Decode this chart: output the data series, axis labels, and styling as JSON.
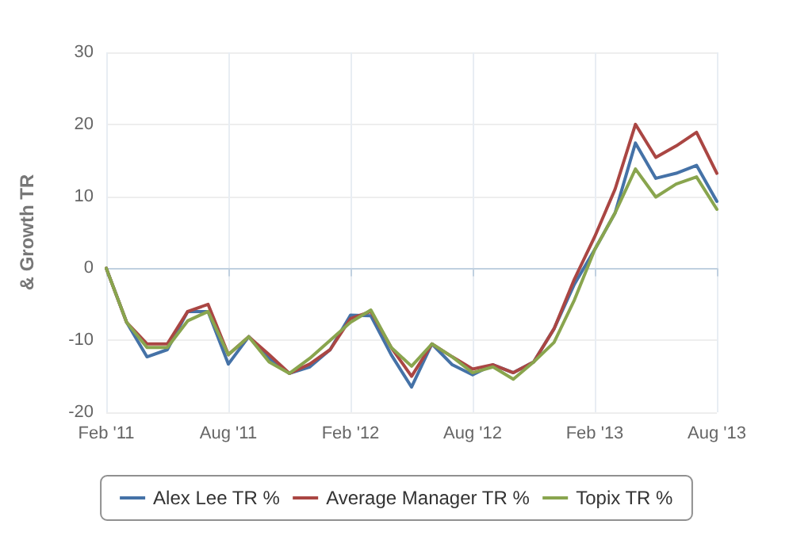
{
  "chart_data": {
    "type": "line",
    "ylabel": "& Growth TR",
    "categories": [
      "Feb '11",
      null,
      null,
      null,
      null,
      null,
      "Aug '11",
      null,
      null,
      null,
      null,
      null,
      "Feb '12",
      null,
      null,
      null,
      null,
      null,
      "Aug '12",
      null,
      null,
      null,
      null,
      null,
      "Feb '13",
      null,
      null,
      null,
      null,
      null,
      "Aug '13"
    ],
    "series": [
      {
        "name": "Alex Lee TR %",
        "color": "#4572a7",
        "values": [
          0,
          -7.5,
          -12.3,
          -11.3,
          -6,
          -6,
          -13.3,
          -9.5,
          -12.5,
          -14.6,
          -13.7,
          -11.3,
          -6.5,
          -6.6,
          -12,
          -16.5,
          -10.5,
          -13.4,
          -14.8,
          -13.4,
          -14.5,
          -13,
          -8.4,
          -2.2,
          2.6,
          7.7,
          17.4,
          12.5,
          13.2,
          14.3,
          9.3
        ]
      },
      {
        "name": "Average Manager TR %",
        "color": "#aa4643",
        "values": [
          0,
          -7.5,
          -10.5,
          -10.5,
          -6,
          -5,
          -12,
          -9.5,
          -12,
          -14.6,
          -13.3,
          -11.3,
          -7,
          -6,
          -11,
          -15,
          -10.5,
          -12.3,
          -14,
          -13.4,
          -14.5,
          -13,
          -8.4,
          -1.5,
          4.4,
          11,
          20,
          15.4,
          17,
          18.9,
          13.2
        ]
      },
      {
        "name": "Topix TR %",
        "color": "#89a54e",
        "values": [
          0,
          -7.5,
          -11,
          -11,
          -7.3,
          -6,
          -12,
          -9.5,
          -13,
          -14.6,
          -12.5,
          -10,
          -7.5,
          -5.8,
          -11,
          -13.6,
          -10.5,
          -12.3,
          -14.5,
          -13.7,
          -15.4,
          -13,
          -10.3,
          -4.4,
          2.6,
          7.7,
          13.8,
          9.9,
          11.7,
          12.7,
          8.2
        ]
      }
    ],
    "ylim": [
      -20,
      30
    ],
    "yticks": [
      -20,
      -10,
      0,
      10,
      20,
      30
    ],
    "grid": true,
    "legend": "bottom",
    "marker": "none",
    "line_style": "solid"
  }
}
